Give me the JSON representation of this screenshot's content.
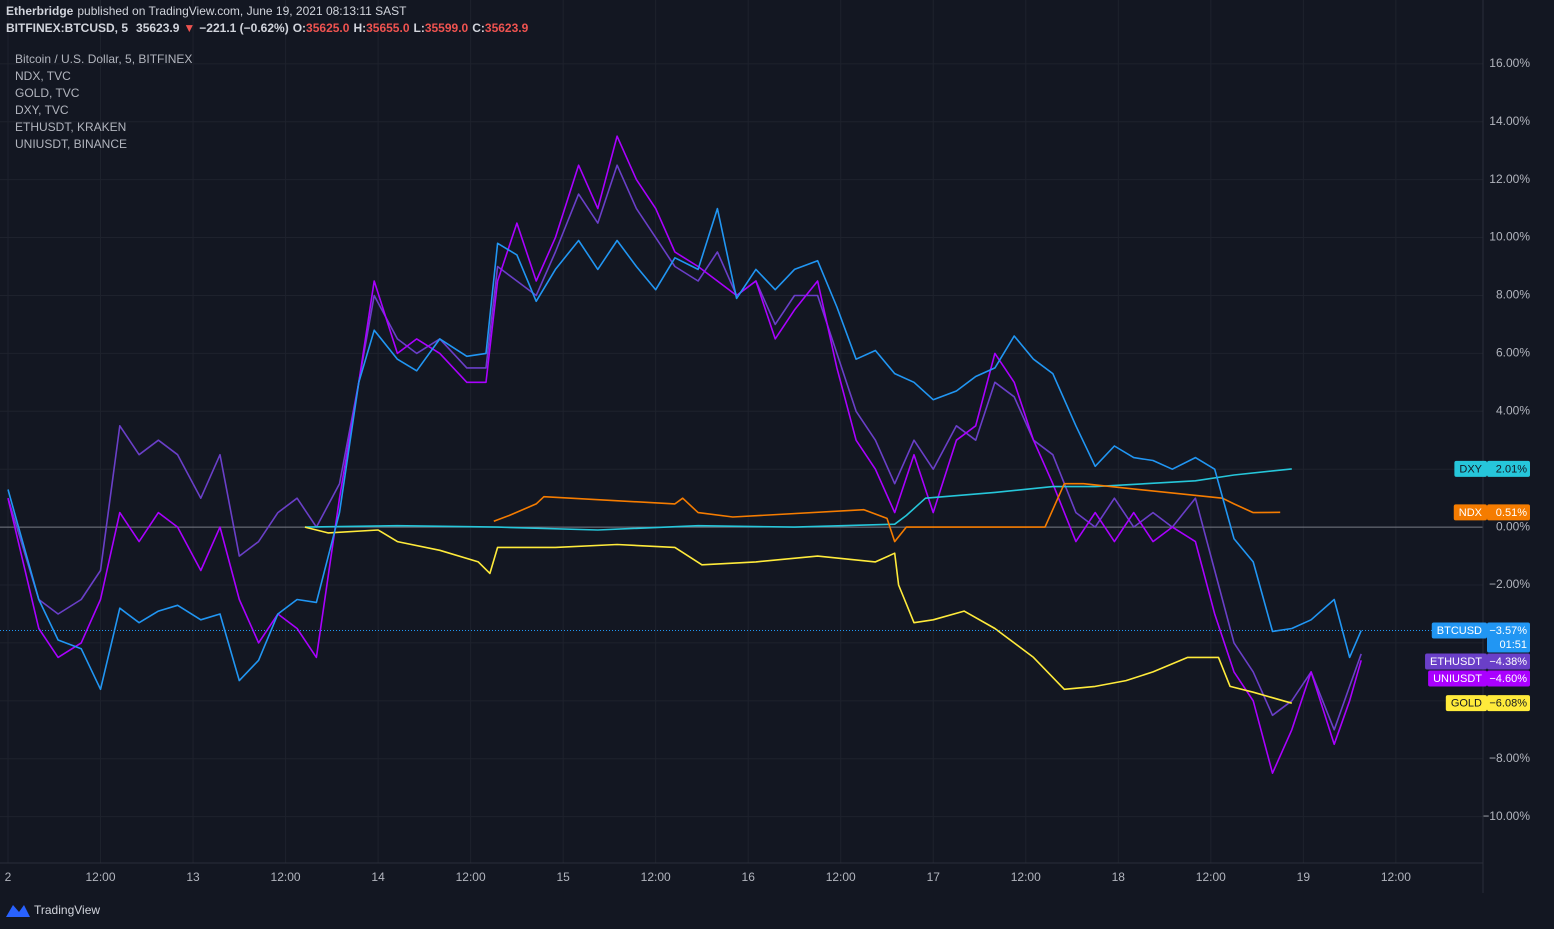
{
  "header": {
    "author": "Etherbridge",
    "published": "published on TradingView.com, June 19, 2021 08:13:11 SAST",
    "symbol": "BITFINEX:BTCUSD, 5",
    "price": "35623.9",
    "arrow": "▼",
    "change": "−221.1 (−0.62%)",
    "ohlc": [
      {
        "key": "O:",
        "value": "35625.0"
      },
      {
        "key": "H:",
        "value": "35655.0"
      },
      {
        "key": "L:",
        "value": "35599.0"
      },
      {
        "key": "C:",
        "value": "35623.9"
      }
    ]
  },
  "footer": {
    "brand": "TradingView"
  },
  "chart_data": {
    "type": "line",
    "x": [
      0,
      4,
      6.5,
      9.5,
      12,
      14.5,
      17,
      19.5,
      22,
      25,
      27.5,
      30,
      32.5,
      35,
      37.5,
      40,
      43,
      45.5,
      47.5,
      50.5,
      53,
      56,
      59.5,
      62,
      63.5,
      66,
      68.5,
      71,
      74,
      76.5,
      79,
      81.5,
      84,
      86.5,
      89.5,
      92,
      94.5,
      97,
      99.5,
      102,
      105,
      107.5,
      110,
      112.5,
      115,
      117.5,
      120,
      123,
      125.5,
      128,
      130.5,
      133,
      135.5,
      138.5,
      141,
      143.5,
      146,
      148.5,
      151,
      154,
      156.5,
      159,
      161.5,
      164,
      166.5,
      169,
      172,
      174,
      175.5
    ],
    "xlim": [
      0,
      191.3
    ],
    "xticks": [
      {
        "value": 0,
        "label": "2"
      },
      {
        "value": 12,
        "label": "12:00"
      },
      {
        "value": 24,
        "label": "13"
      },
      {
        "value": 36,
        "label": "12:00"
      },
      {
        "value": 48,
        "label": "14"
      },
      {
        "value": 60,
        "label": "12:00"
      },
      {
        "value": 72,
        "label": "15"
      },
      {
        "value": 84,
        "label": "12:00"
      },
      {
        "value": 96,
        "label": "16"
      },
      {
        "value": 108,
        "label": "12:00"
      },
      {
        "value": 120,
        "label": "17"
      },
      {
        "value": 132,
        "label": "12:00"
      },
      {
        "value": 144,
        "label": "18"
      },
      {
        "value": 156,
        "label": "12:00"
      },
      {
        "value": 168,
        "label": "19"
      },
      {
        "value": 180,
        "label": "12:00"
      }
    ],
    "ylim": [
      -11.6,
      16.65
    ],
    "yticks": [
      {
        "value": 16,
        "label": "16.00%"
      },
      {
        "value": 14,
        "label": "14.00%"
      },
      {
        "value": 12,
        "label": "12.00%"
      },
      {
        "value": 10,
        "label": "10.00%"
      },
      {
        "value": 8,
        "label": "8.00%"
      },
      {
        "value": 6,
        "label": "6.00%"
      },
      {
        "value": 4,
        "label": "4.00%"
      },
      {
        "value": 2,
        "label": "2.00%"
      },
      {
        "value": 0,
        "label": "0.00%"
      },
      {
        "value": -2,
        "label": "−2.00%"
      },
      {
        "value": -4,
        "label": "−4.00%"
      },
      {
        "value": -6,
        "label": "−6.00%"
      },
      {
        "value": -8,
        "label": "−8.00%"
      },
      {
        "value": -10,
        "label": "−10.00%"
      }
    ],
    "grid": true,
    "countdown": "01:51",
    "series": [
      {
        "name": "BTCUSD",
        "description": "Bitcoin / U.S. Dollar, 5, BITFINEX",
        "color": "#2196f3",
        "values": [
          1.3,
          -2.5,
          -3.9,
          -4.2,
          -5.6,
          -2.8,
          -3.3,
          -2.9,
          -2.7,
          -3.2,
          -3.0,
          -5.3,
          -4.6,
          -3.0,
          -2.5,
          -2.6,
          0.5,
          5.0,
          6.8,
          5.8,
          5.4,
          6.5,
          5.9,
          6.0,
          9.8,
          9.4,
          7.8,
          8.9,
          9.9,
          8.9,
          9.9,
          9.0,
          8.2,
          9.3,
          8.9,
          11.0,
          7.9,
          8.9,
          8.2,
          8.9,
          9.2,
          7.6,
          5.8,
          6.1,
          5.3,
          5.0,
          4.4,
          4.7,
          5.2,
          5.5,
          6.6,
          5.8,
          5.3,
          3.5,
          2.1,
          2.8,
          2.4,
          2.3,
          2.0,
          2.4,
          2.0,
          -0.4,
          -1.2,
          -3.6,
          -3.5,
          -3.2,
          -2.5,
          -4.5,
          -3.57
        ],
        "value_labels": [
          null,
          null,
          null,
          null,
          null,
          null,
          null,
          null,
          null,
          null,
          null,
          null,
          null,
          null,
          null,
          null,
          null,
          null,
          null,
          null,
          null,
          null,
          null,
          null,
          null,
          null,
          null,
          null,
          null,
          null,
          null,
          null,
          null,
          null,
          null,
          null,
          null,
          null,
          null,
          null,
          null,
          null,
          null,
          null,
          null,
          null,
          null,
          null,
          null,
          null,
          null,
          null,
          null,
          null,
          null,
          null,
          null,
          null,
          null,
          null,
          null,
          null,
          null,
          null,
          null,
          null,
          null,
          null,
          "−3.57%"
        ]
      },
      {
        "name": "NDX",
        "description": "NDX, TVC",
        "color": "#f57c00",
        "x": [
          63,
          65,
          68.5,
          69.5,
          86.5,
          87.5,
          89.5,
          94,
          111,
          114,
          115,
          116.5,
          134.5,
          137,
          139.5,
          157.5,
          159,
          161.5,
          165
        ],
        "values": [
          0.2,
          0.4,
          0.8,
          1.05,
          0.8,
          1.0,
          0.5,
          0.35,
          0.6,
          0.3,
          -0.5,
          0.0,
          0.0,
          1.5,
          1.5,
          1.0,
          0.8,
          0.5,
          0.51
        ],
        "value_labels": [
          null,
          null,
          null,
          null,
          null,
          null,
          null,
          null,
          null,
          null,
          null,
          null,
          null,
          null,
          null,
          null,
          null,
          null,
          "0.51%"
        ]
      },
      {
        "name": "GOLD",
        "description": "GOLD, TVC",
        "color": "#ffeb3b",
        "x": [
          38.5,
          41.5,
          48,
          50.5,
          56,
          61,
          62.5,
          63.5,
          71,
          79,
          86.5,
          90,
          97,
          105,
          112.5,
          115,
          115.5,
          117.5,
          120,
          124,
          128,
          133,
          137,
          141,
          145,
          148.5,
          153,
          157,
          158.5,
          161.5,
          166.5
        ],
        "values": [
          0,
          -0.2,
          -0.1,
          -0.5,
          -0.8,
          -1.2,
          -1.6,
          -0.7,
          -0.7,
          -0.6,
          -0.7,
          -1.3,
          -1.2,
          -1.0,
          -1.2,
          -0.9,
          -2.0,
          -3.3,
          -3.2,
          -2.9,
          -3.5,
          -4.5,
          -5.6,
          -5.5,
          -5.3,
          -5.0,
          -4.5,
          -4.5,
          -5.5,
          -5.7,
          -6.08
        ],
        "value_labels": [
          null,
          null,
          null,
          null,
          null,
          null,
          null,
          null,
          null,
          null,
          null,
          null,
          null,
          null,
          null,
          null,
          null,
          null,
          null,
          null,
          null,
          null,
          null,
          null,
          null,
          null,
          null,
          null,
          null,
          null,
          "−6.08%"
        ]
      },
      {
        "name": "DXY",
        "description": "DXY, TVC",
        "color": "#26c6da",
        "x": [
          38.5,
          50.5,
          63.5,
          76.5,
          89.5,
          102,
          115,
          116.5,
          119,
          128,
          135.5,
          141,
          147.5,
          154,
          159,
          166.5
        ],
        "values": [
          0,
          0.05,
          0.0,
          -0.1,
          0.05,
          0.0,
          0.1,
          0.4,
          1.0,
          1.2,
          1.4,
          1.4,
          1.5,
          1.6,
          1.8,
          2.01
        ],
        "value_labels": [
          null,
          null,
          null,
          null,
          null,
          null,
          null,
          null,
          null,
          null,
          null,
          null,
          null,
          null,
          null,
          "2.01%"
        ]
      },
      {
        "name": "ETHUSDT",
        "description": "ETHUSDT, KRAKEN",
        "color": "#6a3fc8",
        "values": [
          1.0,
          -2.5,
          -3.0,
          -2.5,
          -1.5,
          3.5,
          2.5,
          3.0,
          2.5,
          1.0,
          2.5,
          -1.0,
          -0.5,
          0.5,
          1.0,
          0.0,
          1.5,
          5.0,
          8.0,
          6.5,
          6.0,
          6.5,
          5.5,
          5.5,
          9.0,
          8.5,
          8.0,
          9.5,
          11.5,
          10.5,
          12.5,
          11.0,
          10.0,
          9.0,
          8.5,
          9.5,
          8.0,
          8.5,
          7.0,
          8.0,
          8.0,
          6.0,
          4.0,
          3.0,
          1.5,
          3.0,
          2.0,
          3.5,
          3.0,
          5.0,
          4.5,
          3.0,
          2.5,
          0.5,
          0.0,
          1.0,
          0.0,
          0.5,
          0.0,
          1.0,
          -1.5,
          -4.0,
          -5.0,
          -6.5,
          -6.0,
          -5.0,
          -7.0,
          -5.5,
          -4.38
        ],
        "value_labels": [
          null,
          null,
          null,
          null,
          null,
          null,
          null,
          null,
          null,
          null,
          null,
          null,
          null,
          null,
          null,
          null,
          null,
          null,
          null,
          null,
          null,
          null,
          null,
          null,
          null,
          null,
          null,
          null,
          null,
          null,
          null,
          null,
          null,
          null,
          null,
          null,
          null,
          null,
          null,
          null,
          null,
          null,
          null,
          null,
          null,
          null,
          null,
          null,
          null,
          null,
          null,
          null,
          null,
          null,
          null,
          null,
          null,
          null,
          null,
          null,
          null,
          null,
          null,
          null,
          null,
          null,
          null,
          null,
          "−4.38%"
        ]
      },
      {
        "name": "UNIUSDT",
        "description": "UNIUSDT, BINANCE",
        "color": "#aa00ff",
        "values": [
          1.0,
          -3.5,
          -4.5,
          -4.0,
          -2.5,
          0.5,
          -0.5,
          0.5,
          0.0,
          -1.5,
          0.0,
          -2.5,
          -4.0,
          -3.0,
          -3.5,
          -4.5,
          1.0,
          5.0,
          8.5,
          6.0,
          6.5,
          6.0,
          5.0,
          5.0,
          8.5,
          10.5,
          8.5,
          10.0,
          12.5,
          11.0,
          13.5,
          12.0,
          11.0,
          9.5,
          9.0,
          8.5,
          8.0,
          8.5,
          6.5,
          7.5,
          8.5,
          5.5,
          3.0,
          2.0,
          0.5,
          2.5,
          0.5,
          3.0,
          3.5,
          6.0,
          5.0,
          3.0,
          1.5,
          -0.5,
          0.5,
          -0.5,
          0.5,
          -0.5,
          0.0,
          -0.5,
          -3.0,
          -5.0,
          -6.0,
          -8.5,
          -7.0,
          -5.0,
          -7.5,
          -6.0,
          -4.6
        ],
        "value_labels": [
          null,
          null,
          null,
          null,
          null,
          null,
          null,
          null,
          null,
          null,
          null,
          null,
          null,
          null,
          null,
          null,
          null,
          null,
          null,
          null,
          null,
          null,
          null,
          null,
          null,
          null,
          null,
          null,
          null,
          null,
          null,
          null,
          null,
          null,
          null,
          null,
          null,
          null,
          null,
          null,
          null,
          null,
          null,
          null,
          null,
          null,
          null,
          null,
          null,
          null,
          null,
          null,
          null,
          null,
          null,
          null,
          null,
          null,
          null,
          null,
          null,
          null,
          null,
          null,
          null,
          null,
          null,
          null,
          "−4.60%"
        ]
      }
    ]
  }
}
